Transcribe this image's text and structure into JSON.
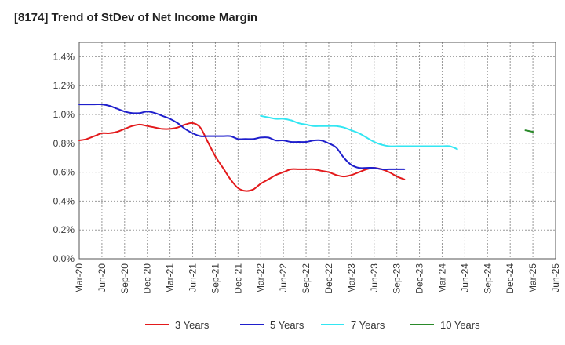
{
  "chart_data": {
    "type": "line",
    "title": "[8174]  Trend of StDev of Net Income Margin",
    "xlabel": "",
    "ylabel": "",
    "ylim": [
      0,
      0.015
    ],
    "y_ticks": [
      0,
      0.002,
      0.004,
      0.006,
      0.008,
      0.01,
      0.012,
      0.014
    ],
    "y_tick_labels": [
      "0.0%",
      "0.2%",
      "0.4%",
      "0.6%",
      "0.8%",
      "1.0%",
      "1.2%",
      "1.4%"
    ],
    "x_tick_labels": [
      "Mar-20",
      "Jun-20",
      "Sep-20",
      "Dec-20",
      "Mar-21",
      "Jun-21",
      "Sep-21",
      "Dec-21",
      "Mar-22",
      "Jun-22",
      "Sep-22",
      "Dec-22",
      "Mar-23",
      "Jun-23",
      "Sep-23",
      "Dec-23",
      "Mar-24",
      "Jun-24",
      "Sep-24",
      "Dec-24",
      "Mar-25",
      "Jun-25"
    ],
    "grid": true,
    "legend_position": "bottom",
    "series": [
      {
        "name": "3 Years",
        "color": "#e31a1c",
        "start": "Mar-20",
        "values": [
          0.0082,
          0.0083,
          0.0085,
          0.0087,
          0.0087,
          0.0088,
          0.009,
          0.0092,
          0.0093,
          0.0092,
          0.0091,
          0.009,
          0.009,
          0.0091,
          0.0093,
          0.0094,
          0.0091,
          0.0081,
          0.0071,
          0.0063,
          0.0055,
          0.0049,
          0.0047,
          0.0048,
          0.0052,
          0.0055,
          0.0058,
          0.006,
          0.0062,
          0.0062,
          0.0062,
          0.0062,
          0.0061,
          0.006,
          0.0058,
          0.0057,
          0.0058,
          0.006,
          0.0062,
          0.0063,
          0.0062,
          0.006,
          0.0057,
          0.0055
        ]
      },
      {
        "name": "5 Years",
        "color": "#1f1fcc",
        "start": "Mar-20",
        "values": [
          0.0107,
          0.0107,
          0.0107,
          0.0107,
          0.0106,
          0.0104,
          0.0102,
          0.0101,
          0.0101,
          0.0102,
          0.0101,
          0.0099,
          0.0097,
          0.0094,
          0.009,
          0.0087,
          0.0085,
          0.0085,
          0.0085,
          0.0085,
          0.0085,
          0.0083,
          0.0083,
          0.0083,
          0.0084,
          0.0084,
          0.0082,
          0.0082,
          0.0081,
          0.0081,
          0.0081,
          0.0082,
          0.0082,
          0.008,
          0.0077,
          0.007,
          0.0065,
          0.0063,
          0.0063,
          0.0063,
          0.0062,
          0.0062,
          0.0062,
          0.0062
        ]
      },
      {
        "name": "7 Years",
        "color": "#33e6f2",
        "start": "Mar-22",
        "values": [
          0.0099,
          0.0098,
          0.0097,
          0.0097,
          0.0096,
          0.0094,
          0.0093,
          0.0092,
          0.0092,
          0.0092,
          0.0092,
          0.0091,
          0.0089,
          0.0087,
          0.0084,
          0.0081,
          0.0079,
          0.0078,
          0.0078,
          0.0078,
          0.0078,
          0.0078,
          0.0078,
          0.0078,
          0.0078,
          0.0078,
          0.0076
        ]
      },
      {
        "name": "10 Years",
        "color": "#2a8a2a",
        "start": "Feb-25",
        "values": [
          0.0089,
          0.0088
        ]
      }
    ]
  }
}
